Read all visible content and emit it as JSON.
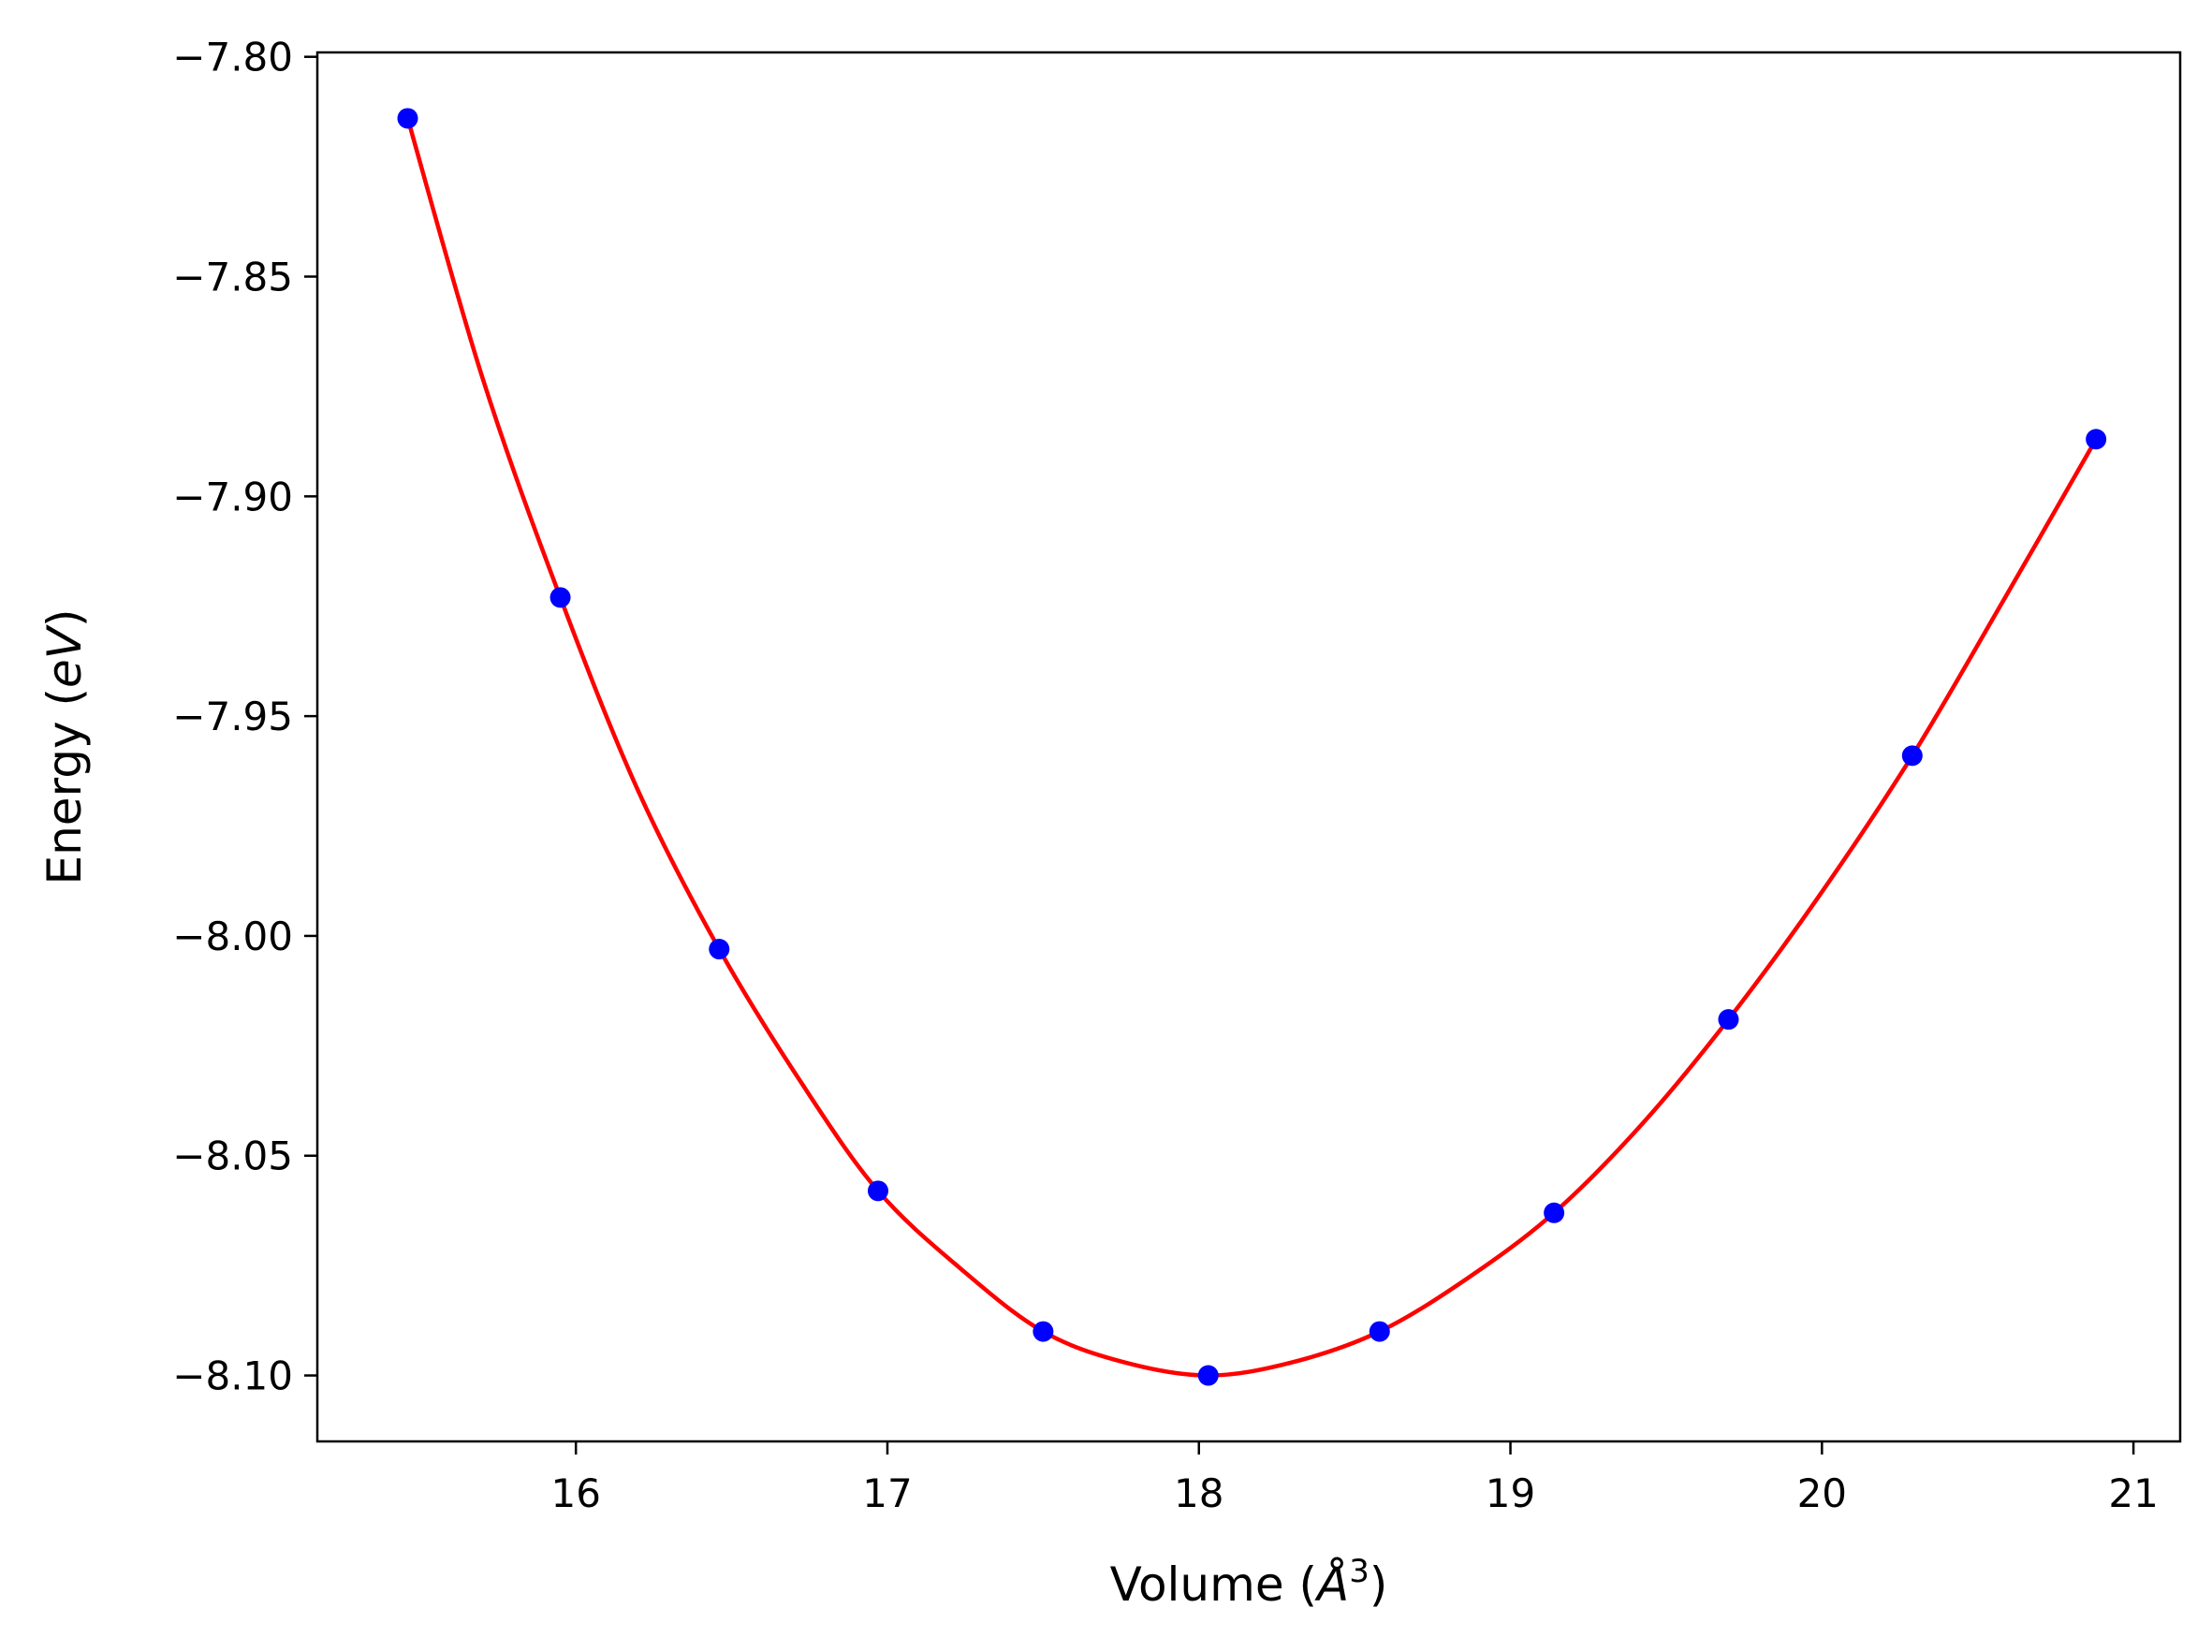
{
  "chart_data": {
    "type": "scatter",
    "title": "",
    "xlabel": "Volume (",
    "xlabel_symbol": "Å",
    "xlabel_exp": "3",
    "xlabel_close": ")",
    "ylabel": "Energy (",
    "ylabel_unit": "eV",
    "ylabel_close": ")",
    "xlim": [
      15.17,
      21.15
    ],
    "ylim": [
      -8.115,
      -7.799
    ],
    "xticks": [
      16,
      17,
      18,
      19,
      20,
      21
    ],
    "xtick_labels": [
      "16",
      "17",
      "18",
      "19",
      "20",
      "21"
    ],
    "yticks": [
      -7.8,
      -7.85,
      -7.9,
      -7.95,
      -8.0,
      -8.05,
      -8.1
    ],
    "ytick_labels": [
      "−7.80",
      "−7.85",
      "−7.90",
      "−7.95",
      "−8.00",
      "−8.05",
      "−8.10"
    ],
    "grid": false,
    "legend": "none",
    "series": [
      {
        "kind": "points",
        "color": "#0000ff",
        "x": [
          15.46,
          15.95,
          16.46,
          16.97,
          17.5,
          18.03,
          18.58,
          19.14,
          19.7,
          20.29,
          20.88
        ],
        "y": [
          -7.814,
          -7.923,
          -8.003,
          -8.058,
          -8.09,
          -8.1,
          -8.09,
          -8.063,
          -8.019,
          -7.959,
          -7.887
        ]
      },
      {
        "kind": "fit-curve",
        "color": "#ff0000",
        "x": [
          15.46,
          15.7,
          15.95,
          16.2,
          16.46,
          16.72,
          16.97,
          17.24,
          17.5,
          17.76,
          18.03,
          18.3,
          18.58,
          18.86,
          19.14,
          19.42,
          19.7,
          19.99,
          20.29,
          20.58,
          20.88
        ],
        "y": [
          -7.814,
          -7.873,
          -7.923,
          -7.967,
          -8.003,
          -8.033,
          -8.058,
          -8.076,
          -8.09,
          -8.097,
          -8.1,
          -8.097,
          -8.09,
          -8.078,
          -8.063,
          -8.043,
          -8.019,
          -7.991,
          -7.959,
          -7.924,
          -7.887
        ]
      }
    ]
  }
}
